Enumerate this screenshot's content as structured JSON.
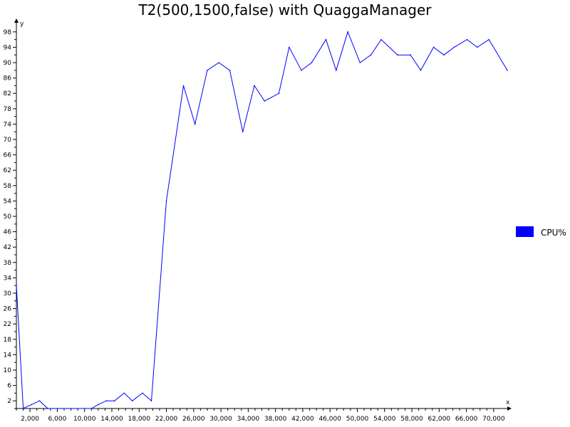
{
  "chart_data": {
    "type": "line",
    "title": "T2(500,1500,false) with QuaggaManager",
    "xlabel": "x",
    "ylabel": "y",
    "xlim": [
      0,
      72000
    ],
    "ylim": [
      0,
      100
    ],
    "x_ticks": [
      2000,
      6000,
      10000,
      14000,
      18000,
      22000,
      26000,
      30000,
      34000,
      38000,
      42000,
      46000,
      50000,
      54000,
      58000,
      62000,
      66000,
      70000
    ],
    "x_tick_labels": [
      "2,000",
      "6,000",
      "10,000",
      "14,000",
      "18,000",
      "22,000",
      "26,000",
      "30,000",
      "34,000",
      "38,000",
      "42,000",
      "46,000",
      "50,000",
      "54,000",
      "58,000",
      "62,000",
      "66,000",
      "70,000"
    ],
    "y_ticks": [
      2,
      6,
      10,
      14,
      18,
      22,
      26,
      30,
      34,
      38,
      42,
      46,
      50,
      54,
      58,
      62,
      66,
      70,
      74,
      78,
      82,
      86,
      90,
      94,
      98
    ],
    "y_tick_labels": [
      "2",
      "6",
      "10",
      "14",
      "18",
      "22",
      "26",
      "30",
      "34",
      "38",
      "42",
      "46",
      "50",
      "54",
      "58",
      "62",
      "66",
      "70",
      "74",
      "78",
      "82",
      "86",
      "90",
      "94",
      "98"
    ],
    "legend": {
      "position": "right",
      "entries": [
        {
          "label": "CPU%",
          "color": "#0000ff"
        }
      ]
    },
    "grid": false,
    "series": [
      {
        "name": "CPU%",
        "color": "#0000ff",
        "x": [
          0,
          1000,
          2200,
          3400,
          4600,
          6000,
          8000,
          10000,
          11000,
          12000,
          13200,
          14400,
          15800,
          17000,
          18500,
          19800,
          22000,
          24500,
          26200,
          28000,
          29700,
          31300,
          33200,
          34900,
          36400,
          38500,
          40000,
          41800,
          43300,
          45400,
          46900,
          48600,
          50400,
          52000,
          53500,
          55900,
          57800,
          59300,
          61200,
          62700,
          64200,
          66100,
          67600,
          69300,
          72000
        ],
        "y": [
          32,
          0,
          1,
          2,
          0,
          0,
          0,
          0,
          0,
          1,
          2,
          2,
          4,
          2,
          4,
          2,
          54,
          84,
          74,
          88,
          90,
          88,
          72,
          84,
          80,
          82,
          94,
          88,
          90,
          96,
          88,
          98,
          90,
          92,
          96,
          92,
          92,
          88,
          94,
          92,
          94,
          96,
          94,
          96,
          88
        ]
      }
    ]
  }
}
